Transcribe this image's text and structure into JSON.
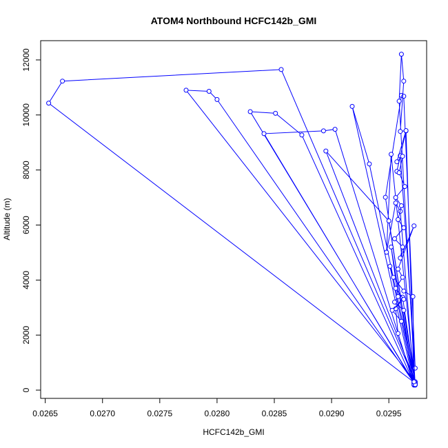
{
  "chart_data": {
    "type": "line",
    "title": "ATOM4 Northbound HCFC142b_GMI",
    "xlabel": "HCFC142b_GMI",
    "ylabel": "Altitude (m)",
    "xlim": [
      0.02646,
      0.02983
    ],
    "ylim": [
      -300,
      12700
    ],
    "x_ticks": [
      {
        "value": 0.0265,
        "label": "0.0265"
      },
      {
        "value": 0.027,
        "label": "0.0270"
      },
      {
        "value": 0.0275,
        "label": "0.0275"
      },
      {
        "value": 0.028,
        "label": "0.0280"
      },
      {
        "value": 0.0285,
        "label": "0.0285"
      },
      {
        "value": 0.029,
        "label": "0.0290"
      },
      {
        "value": 0.0295,
        "label": "0.0295"
      }
    ],
    "y_ticks": [
      {
        "value": 0,
        "label": "0"
      },
      {
        "value": 2000,
        "label": "2000"
      },
      {
        "value": 4000,
        "label": "4000"
      },
      {
        "value": 6000,
        "label": "6000"
      },
      {
        "value": 8000,
        "label": "8000"
      },
      {
        "value": 10000,
        "label": "10000"
      },
      {
        "value": 12000,
        "label": "12000"
      }
    ],
    "grid": false,
    "series": [
      {
        "color": "#0000ff",
        "marker": "open-circle",
        "x": [
          0.02973,
          0.02653,
          0.02665,
          0.02856,
          0.02973,
          0.02773,
          0.02793,
          0.028,
          0.02973,
          0.02829,
          0.02851,
          0.02874,
          0.02972,
          0.02841,
          0.02893,
          0.02903,
          0.02972,
          0.02918,
          0.02933,
          0.02973,
          0.02895,
          0.0295,
          0.02972,
          0.02947,
          0.02961,
          0.02963,
          0.02973,
          0.0296,
          0.02957,
          0.02965,
          0.02972,
          0.02952,
          0.02958,
          0.02955,
          0.02963,
          0.02973,
          0.02952,
          0.02948,
          0.02956,
          0.0296,
          0.02972,
          0.02951,
          0.02954,
          0.02963,
          0.02971,
          0.02972,
          0.02958,
          0.02956,
          0.02962,
          0.02973
        ],
        "y": [
          250,
          10430,
          11230,
          11650,
          300,
          10900,
          10860,
          10560,
          200,
          10120,
          10060,
          9270,
          250,
          9320,
          9420,
          9480,
          180,
          10310,
          8220,
          300,
          8690,
          6150,
          220,
          7010,
          10710,
          10680,
          800,
          8520,
          7950,
          9420,
          260,
          5200,
          3400,
          3200,
          2900,
          180,
          8570,
          5010,
          6800,
          6500,
          300,
          4500,
          4100,
          3600,
          3400,
          200,
          2060,
          2960,
          3380,
          250
        ]
      },
      {
        "color": "#0000ff",
        "marker": "open-circle",
        "x": [
          0.02973,
          0.02959,
          0.02961,
          0.02963,
          0.0296,
          0.02965,
          0.02957,
          0.02962,
          0.02959,
          0.02964,
          0.02956,
          0.02961,
          0.02958,
          0.02963,
          0.02955,
          0.02962,
          0.0296,
          0.02972,
          0.02958,
          0.02962,
          0.02956,
          0.02963,
          0.02953,
          0.02961,
          0.02972
        ],
        "y": [
          200,
          10500,
          12210,
          11230,
          9400,
          9430,
          8300,
          8500,
          7900,
          7400,
          7000,
          6700,
          6200,
          5900,
          5500,
          5200,
          4800,
          5970,
          4400,
          4100,
          3700,
          3300,
          2900,
          2500,
          300
        ]
      }
    ]
  }
}
